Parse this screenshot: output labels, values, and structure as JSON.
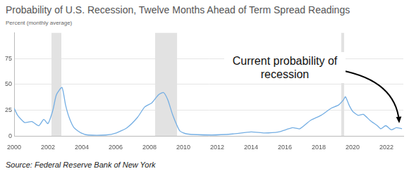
{
  "chart_data": {
    "type": "line",
    "title": "Probability of U.S. Recession, Twelve Months Ahead of Term Spread Readings",
    "subtitle": "Percent (monthly average)",
    "annotation": "Current probability of recession",
    "source": "Source: Federal Reserve Bank of New York",
    "x": [
      2000.0,
      2000.21,
      2000.63,
      2001.04,
      2001.46,
      2001.75,
      2002.0,
      2002.29,
      2002.5,
      2002.83,
      2003.04,
      2003.25,
      2003.54,
      2003.96,
      2004.38,
      2005.42,
      2006.04,
      2006.67,
      2007.29,
      2007.71,
      2008.13,
      2008.54,
      2008.83,
      2009.08,
      2009.38,
      2009.79,
      2010.21,
      2011.67,
      2012.92,
      2014.0,
      2014.79,
      2015.63,
      2016.46,
      2016.88,
      2017.5,
      2018.13,
      2018.75,
      2019.17,
      2019.46,
      2019.58,
      2019.79,
      2020.0,
      2020.33,
      2020.63,
      2021.04,
      2021.46,
      2021.67,
      2021.96,
      2022.29,
      2022.58,
      2022.92
    ],
    "values": [
      27,
      20,
      13,
      14,
      10,
      16,
      12,
      25,
      40,
      47,
      30,
      18,
      8,
      3,
      1,
      1,
      3,
      8,
      18,
      28,
      32,
      40,
      42,
      35,
      20,
      5,
      2,
      1,
      2,
      4,
      3,
      4,
      8,
      7,
      15,
      20,
      27,
      30,
      35,
      38,
      30,
      24,
      20,
      21,
      15,
      10,
      7,
      10,
      6,
      8,
      7
    ],
    "color": "#74aee3",
    "recessions": [
      [
        2002.21,
        2002.79
      ],
      [
        2008.33,
        2009.63
      ],
      [
        2019.33,
        2019.5
      ]
    ],
    "xlim": [
      2000,
      2023
    ],
    "ylim": [
      0,
      100
    ],
    "xticks": [
      2000,
      2002,
      2004,
      2006,
      2008,
      2010,
      2012,
      2014,
      2016,
      2018,
      2020,
      2022
    ],
    "yticks": [
      0,
      25,
      50,
      75
    ],
    "grid": true
  }
}
